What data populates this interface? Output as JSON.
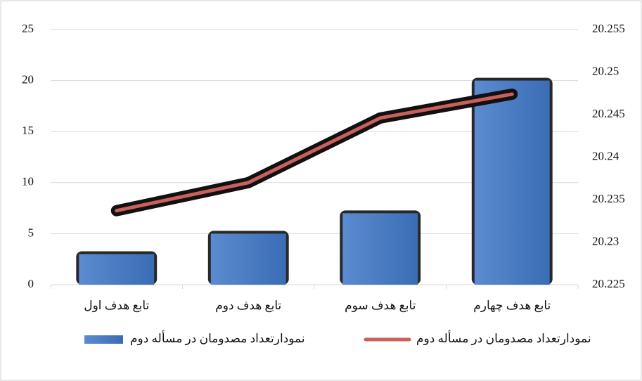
{
  "chart_data": {
    "type": "bar-line",
    "categories": [
      "تابع هدف اول",
      "تابع هدف دوم",
      "تابع هدف سوم",
      "تابع هدف چهارم"
    ],
    "series": [
      {
        "name": "نمودارتعداد مصدومان در مسأله دوم",
        "type": "bar",
        "color": "#4a7cc4",
        "values": [
          3,
          5,
          7,
          20
        ]
      },
      {
        "name": "نمودارتعداد مصدومان در مسأله دوم",
        "type": "line",
        "axis": "y2",
        "color": "#c9605c",
        "values": [
          20.2337,
          20.237,
          20.2446,
          20.2474
        ]
      }
    ],
    "ylim": [
      0,
      25
    ],
    "yticks": [
      0,
      5,
      10,
      15,
      20,
      25
    ],
    "y2lim": [
      20.225,
      20.255
    ],
    "y2ticks": [
      20.225,
      20.23,
      20.235,
      20.24,
      20.245,
      20.25,
      20.255
    ],
    "grid": true,
    "legend": "bottom"
  }
}
